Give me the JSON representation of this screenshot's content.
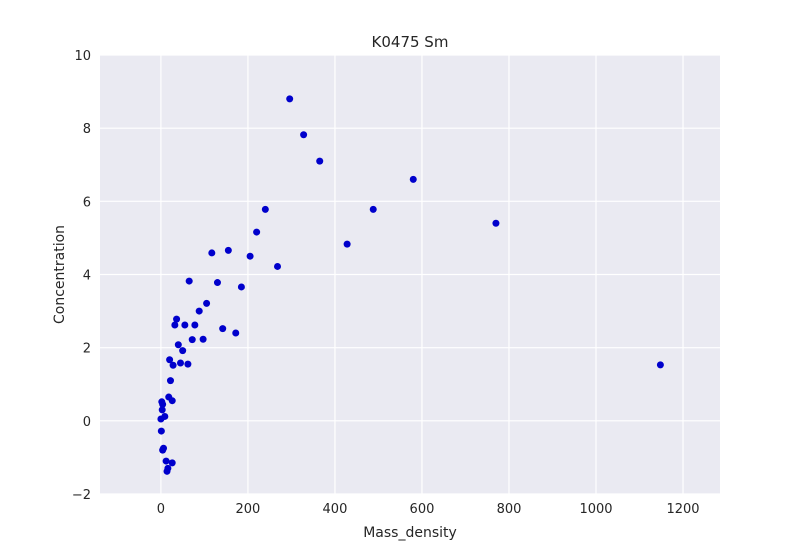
{
  "chart_data": {
    "type": "scatter",
    "title": "K0475 Sm",
    "xlabel": "Mass_density",
    "ylabel": "Concentration",
    "xlim": [
      -140,
      1285
    ],
    "ylim": [
      -2,
      10
    ],
    "xticks": [
      0,
      200,
      400,
      600,
      800,
      1000,
      1200
    ],
    "yticks": [
      -2,
      0,
      2,
      4,
      6,
      8,
      10
    ],
    "xtick_labels": [
      "0",
      "200",
      "400",
      "600",
      "800",
      "1000",
      "1200"
    ],
    "ytick_labels": [
      "−2",
      "0",
      "2",
      "4",
      "6",
      "8",
      "10"
    ],
    "grid": true,
    "background_color": "#EAEAF2",
    "point_color": "#0000CC",
    "series": [
      {
        "x": [
          296,
          328,
          365,
          580,
          488,
          240,
          220,
          155,
          117,
          205,
          268,
          428,
          770,
          1148,
          65,
          130,
          185,
          105,
          88,
          78,
          55,
          36,
          32,
          50,
          72,
          97,
          142,
          172,
          40,
          20,
          28,
          62,
          45,
          22,
          18,
          26,
          2,
          4,
          3,
          9,
          0,
          1,
          4,
          6,
          12,
          16,
          14,
          26
        ],
        "y": [
          8.8,
          7.82,
          7.1,
          6.6,
          5.78,
          5.78,
          5.16,
          4.66,
          4.59,
          4.5,
          4.22,
          4.83,
          5.4,
          1.53,
          3.82,
          3.78,
          3.66,
          3.21,
          3.0,
          2.62,
          2.62,
          2.78,
          2.62,
          1.92,
          2.22,
          2.23,
          2.52,
          2.4,
          2.08,
          1.67,
          1.52,
          1.55,
          1.58,
          1.1,
          0.65,
          0.55,
          0.52,
          0.45,
          0.3,
          0.12,
          0.05,
          -0.28,
          -0.8,
          -0.75,
          -1.1,
          -1.3,
          -1.38,
          -1.15
        ]
      }
    ]
  }
}
